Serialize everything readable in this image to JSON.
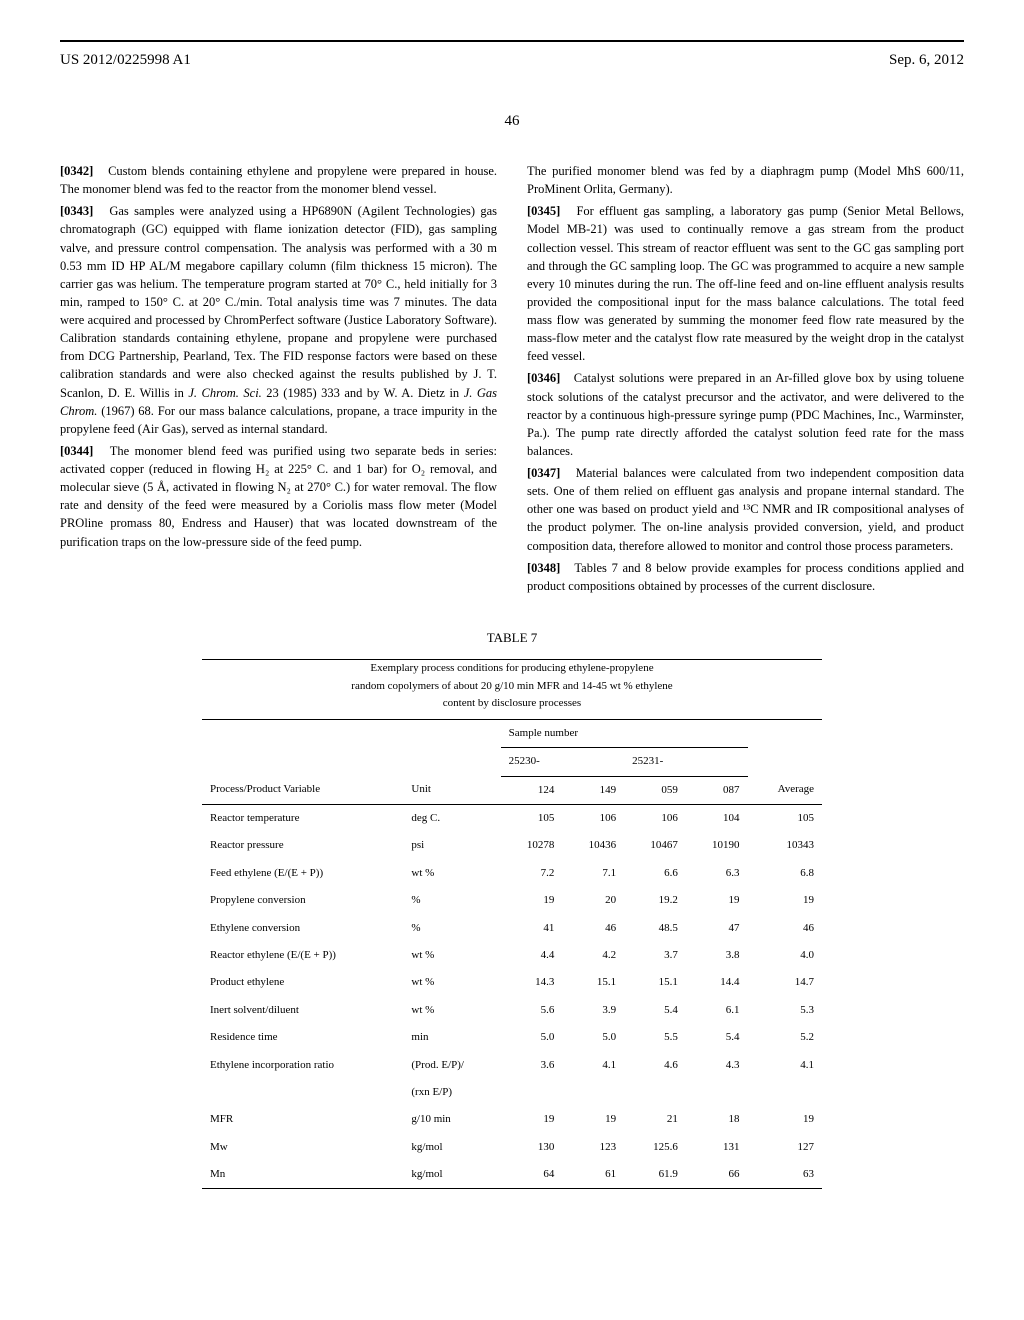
{
  "header": {
    "patent_number": "US 2012/0225998 A1",
    "date": "Sep. 6, 2012",
    "page": "46"
  },
  "left_col": {
    "p342": {
      "num": "[0342]",
      "text": "Custom blends containing ethylene and propylene were prepared in house. The monomer blend was fed to the reactor from the monomer blend vessel."
    },
    "p343": {
      "num": "[0343]",
      "text_a": "Gas samples were analyzed using a HP6890N (Agilent Technologies) gas chromatograph (GC) equipped with flame ionization detector (FID), gas sampling valve, and pressure control compensation. The analysis was performed with a 30 m 0.53 mm ID HP AL/M megabore capillary column (film thickness 15 micron). The carrier gas was helium. The temperature program started at 70° C., held initially for 3 min, ramped to 150° C. at 20° C./min. Total analysis time was 7 minutes. The data were acquired and processed by ChromPerfect software (Justice Laboratory Software). Calibration standards containing ethylene, propane and propylene were purchased from DCG Partnership, Pearland, Tex. The FID response factors were based on these calibration standards and were also checked against the results published by J. T. Scanlon, D. E. Willis in ",
      "journal1": "J. Chrom. Sci.",
      "text_b": " 23 (1985) 333 and by W. A. Dietz in ",
      "journal2": "J. Gas Chrom.",
      "text_c": " (1967) 68. For our mass balance calculations, propane, a trace impurity in the propylene feed (Air Gas), served as internal standard."
    },
    "p344": {
      "num": "[0344]",
      "text": "The monomer blend feed was purified using two separate beds in series: activated copper (reduced in flowing H₂ at 225° C. and 1 bar) for O₂ removal, and molecular sieve (5 Å, activated in flowing N₂ at 270° C.) for water removal. The flow rate and density of the feed were measured by a Coriolis mass flow meter (Model PROline promass 80, Endress and Hauser) that was located downstream of the purification traps on the low-pressure side of the feed pump."
    }
  },
  "right_col": {
    "p344_cont": "The purified monomer blend was fed by a diaphragm pump (Model MhS 600/11, ProMinent Orlita, Germany).",
    "p345": {
      "num": "[0345]",
      "text": "For effluent gas sampling, a laboratory gas pump (Senior Metal Bellows, Model MB-21) was used to continually remove a gas stream from the product collection vessel. This stream of reactor effluent was sent to the GC gas sampling port and through the GC sampling loop. The GC was programmed to acquire a new sample every 10 minutes during the run. The off-line feed and on-line effluent analysis results provided the compositional input for the mass balance calculations. The total feed mass flow was generated by summing the monomer feed flow rate measured by the mass-flow meter and the catalyst flow rate measured by the weight drop in the catalyst feed vessel."
    },
    "p346": {
      "num": "[0346]",
      "text": "Catalyst solutions were prepared in an Ar-filled glove box by using toluene stock solutions of the catalyst precursor and the activator, and were delivered to the reactor by a continuous high-pressure syringe pump (PDC Machines, Inc., Warminster, Pa.). The pump rate directly afforded the catalyst solution feed rate for the mass balances."
    },
    "p347": {
      "num": "[0347]",
      "text": "Material balances were calculated from two independent composition data sets. One of them relied on effluent gas analysis and propane internal standard. The other one was based on product yield and ¹³C NMR and IR compositional analyses of the product polymer. The on-line analysis provided conversion, yield, and product composition data, therefore allowed to monitor and control those process parameters."
    },
    "p348": {
      "num": "[0348]",
      "text": "Tables 7 and 8 below provide examples for process conditions applied and product compositions obtained by processes of the current disclosure."
    }
  },
  "table7": {
    "label": "TABLE 7",
    "subtitle_line1": "Exemplary process conditions for producing ethylene-propylene",
    "subtitle_line2": "random copolymers of about 20 g/10 min MFR and 14-45 wt % ethylene",
    "subtitle_line3": "content by disclosure processes",
    "sample_header": "Sample number",
    "group1": "25230-",
    "group2": "25231-",
    "col_headers": {
      "variable": "Process/Product Variable",
      "unit": "Unit",
      "c1": "124",
      "c2": "149",
      "c3": "059",
      "c4": "087",
      "avg": "Average"
    },
    "rows": [
      {
        "var": "Reactor temperature",
        "unit": "deg C.",
        "v": [
          "105",
          "106",
          "106",
          "104",
          "105"
        ]
      },
      {
        "var": "Reactor pressure",
        "unit": "psi",
        "v": [
          "10278",
          "10436",
          "10467",
          "10190",
          "10343"
        ]
      },
      {
        "var": "Feed ethylene (E/(E + P))",
        "unit": "wt %",
        "v": [
          "7.2",
          "7.1",
          "6.6",
          "6.3",
          "6.8"
        ]
      },
      {
        "var": "Propylene conversion",
        "unit": "%",
        "v": [
          "19",
          "20",
          "19.2",
          "19",
          "19"
        ]
      },
      {
        "var": "Ethylene conversion",
        "unit": "%",
        "v": [
          "41",
          "46",
          "48.5",
          "47",
          "46"
        ]
      },
      {
        "var": "Reactor ethylene (E/(E + P))",
        "unit": "wt %",
        "v": [
          "4.4",
          "4.2",
          "3.7",
          "3.8",
          "4.0"
        ]
      },
      {
        "var": "Product ethylene",
        "unit": "wt %",
        "v": [
          "14.3",
          "15.1",
          "15.1",
          "14.4",
          "14.7"
        ]
      },
      {
        "var": "Inert solvent/diluent",
        "unit": "wt %",
        "v": [
          "5.6",
          "3.9",
          "5.4",
          "6.1",
          "5.3"
        ]
      },
      {
        "var": "Residence time",
        "unit": "min",
        "v": [
          "5.0",
          "5.0",
          "5.5",
          "5.4",
          "5.2"
        ]
      },
      {
        "var": "Ethylene incorporation ratio",
        "unit": "(Prod. E/P)/",
        "v": [
          "3.6",
          "4.1",
          "4.6",
          "4.3",
          "4.1"
        ]
      },
      {
        "var": "",
        "unit": "(rxn E/P)",
        "v": [
          "",
          "",
          "",
          "",
          ""
        ]
      },
      {
        "var": "MFR",
        "unit": "g/10 min",
        "v": [
          "19",
          "19",
          "21",
          "18",
          "19"
        ]
      },
      {
        "var": "Mw",
        "unit": "kg/mol",
        "v": [
          "130",
          "123",
          "125.6",
          "131",
          "127"
        ]
      },
      {
        "var": "Mn",
        "unit": "kg/mol",
        "v": [
          "64",
          "61",
          "61.9",
          "66",
          "63"
        ]
      }
    ]
  }
}
